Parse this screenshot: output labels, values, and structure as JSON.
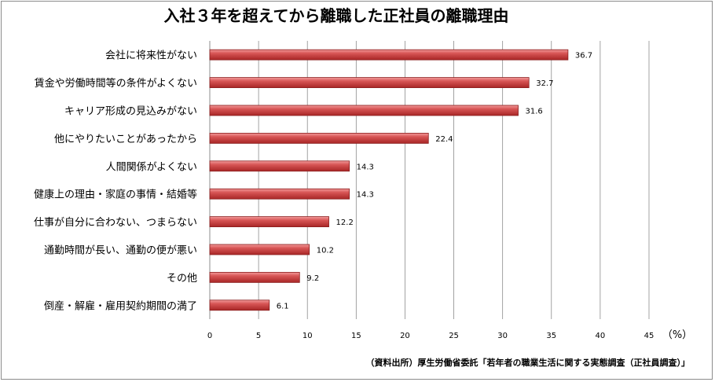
{
  "chart_data": {
    "type": "bar",
    "orientation": "horizontal",
    "title": "入社３年を超えてから離職した正社員の離職理由",
    "unit_label": "（%）",
    "source": "（資料出所）厚生労働省委託「若年者の職業生活に関する実態調査（正社員調査）」",
    "categories": [
      "会社に将来性がない",
      "賃金や労働時間等の条件がよくない",
      "キャリア形成の見込みがない",
      "他にやりたいことがあったから",
      "人間関係がよくない",
      "健康上の理由・家庭の事情・結婚等",
      "仕事が自分に合わない、つまらない",
      "通勤時間が長い、通勤の便が悪い",
      "その他",
      "倒産・解雇・雇用契約期間の満了"
    ],
    "values": [
      36.7,
      32.7,
      31.6,
      22.4,
      14.3,
      14.3,
      12.2,
      10.2,
      9.2,
      6.1
    ],
    "data_labels": [
      "36.7",
      "32.7",
      "31.6",
      "22.4",
      "14.3",
      "14.3",
      "12.2",
      "10.2",
      "9.2",
      "6.1"
    ],
    "xlim": [
      0,
      45
    ],
    "x_ticks": [
      "0",
      "5",
      "10",
      "15",
      "20",
      "25",
      "30",
      "35",
      "40",
      "45"
    ],
    "grid": true,
    "bar_color": "#d24b4b",
    "bar_edge_color": "#8b1f1f"
  }
}
